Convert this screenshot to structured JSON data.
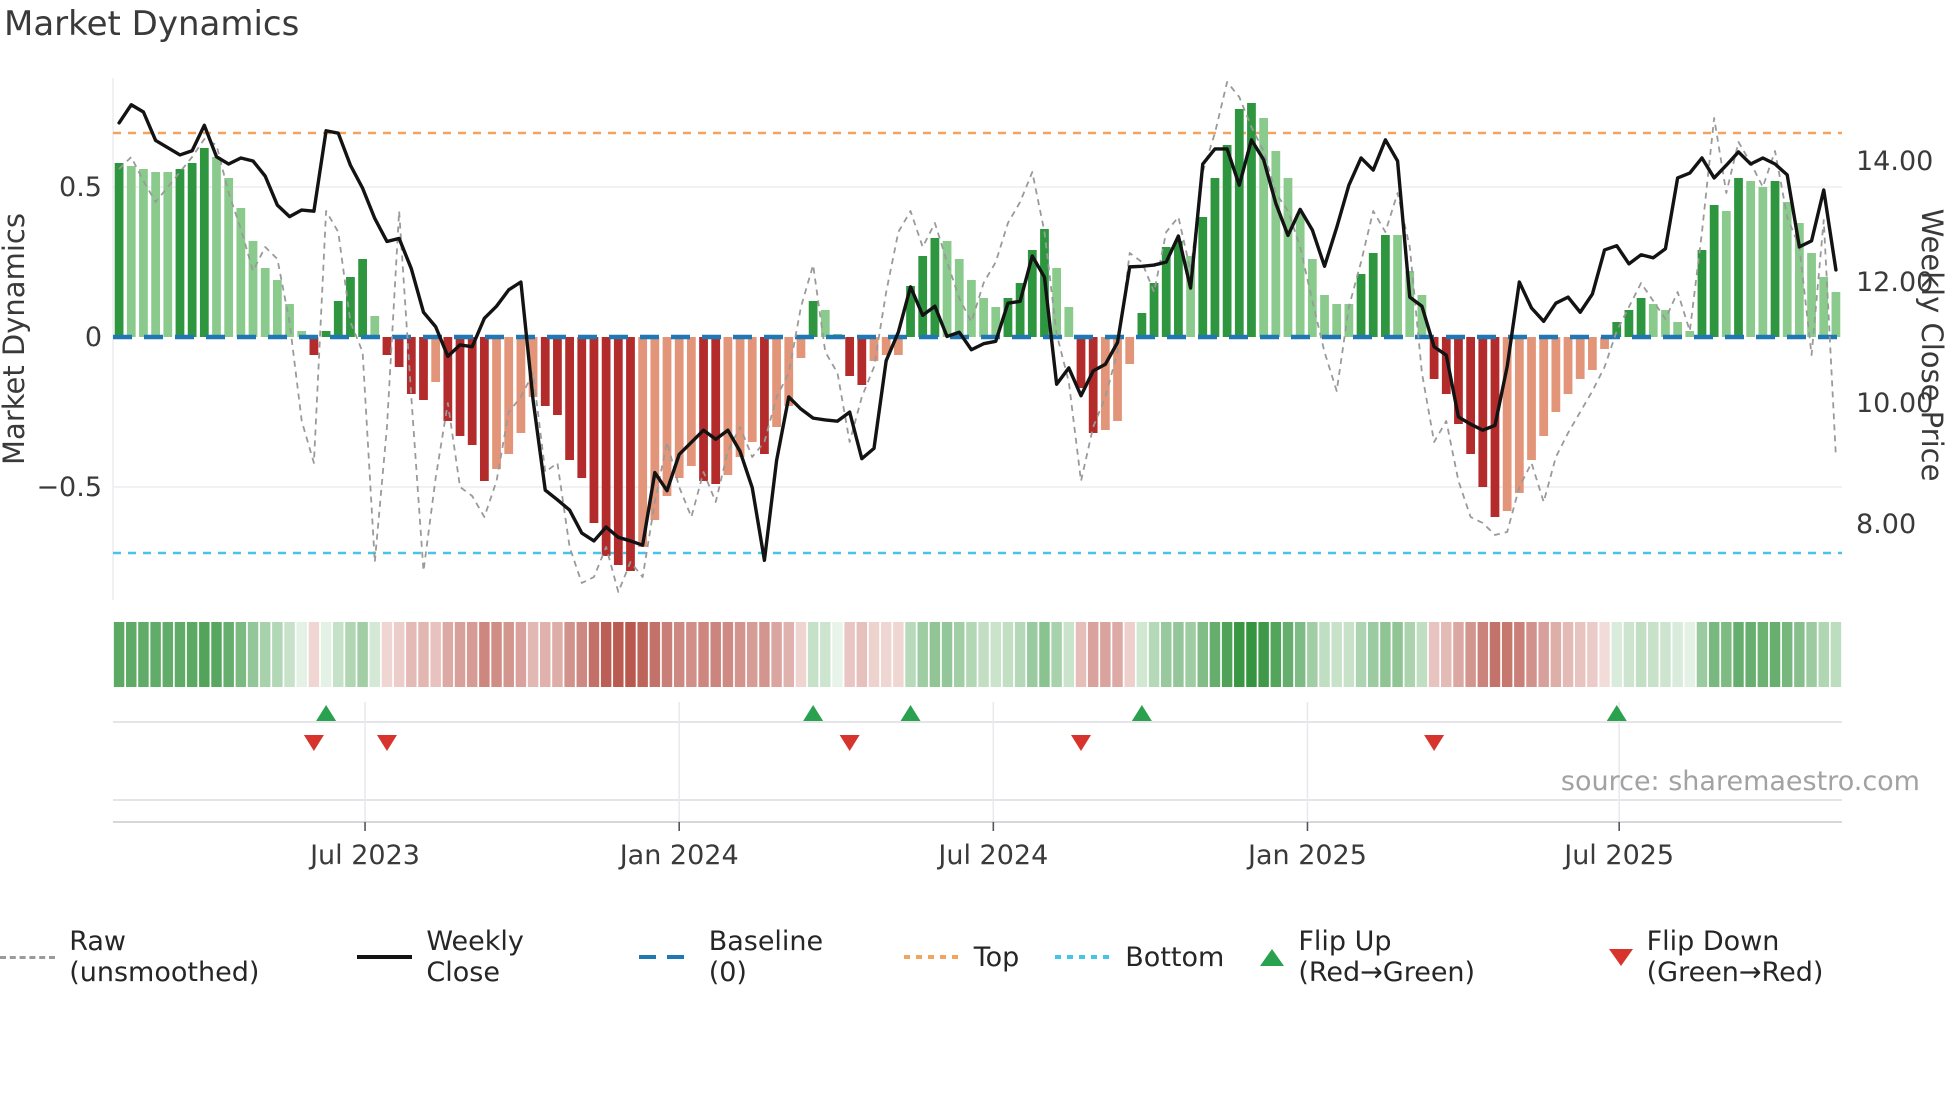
{
  "title": "Market Dynamics",
  "source": "source: sharemaestro.com",
  "axes": {
    "left_label": "Market Dynamics",
    "right_label": "Weekly Close Price",
    "left_ticks": [
      {
        "value": 0.5,
        "label": "0.5"
      },
      {
        "value": 0.0,
        "label": "0"
      },
      {
        "value": -0.5,
        "label": "−0.5"
      }
    ],
    "right_ticks": [
      {
        "value": 14,
        "label": "14.00"
      },
      {
        "value": 12,
        "label": "12.00"
      },
      {
        "value": 10,
        "label": "10.00"
      },
      {
        "value": 8,
        "label": "8.00"
      }
    ],
    "x_ticks": [
      {
        "week": 20.7,
        "label": "Jul 2023"
      },
      {
        "week": 46.5,
        "label": "Jan 2024"
      },
      {
        "week": 72.3,
        "label": "Jul 2024"
      },
      {
        "week": 98.1,
        "label": "Jan 2025"
      },
      {
        "week": 123.7,
        "label": "Jul 2025"
      }
    ]
  },
  "chart_data": {
    "type": "bar",
    "weeks": 142,
    "baseline": 0,
    "top_level": 0.68,
    "bottom_level": -0.72,
    "left_axis_range": [
      -0.87,
      0.87
    ],
    "price_axis_range": [
      7.2,
      15.1
    ],
    "series": [
      {
        "name": "Market Dynamics (smoothed bars)",
        "values": [
          0.58,
          0.57,
          0.56,
          0.55,
          0.55,
          0.56,
          0.58,
          0.63,
          0.6,
          0.53,
          0.43,
          0.32,
          0.23,
          0.19,
          0.11,
          0.02,
          -0.06,
          0.02,
          0.12,
          0.2,
          0.26,
          0.07,
          -0.06,
          -0.1,
          -0.19,
          -0.21,
          -0.15,
          -0.28,
          -0.33,
          -0.36,
          -0.48,
          -0.44,
          -0.39,
          -0.32,
          -0.2,
          -0.23,
          -0.26,
          -0.41,
          -0.47,
          -0.62,
          -0.73,
          -0.76,
          -0.78,
          -0.7,
          -0.61,
          -0.53,
          -0.47,
          -0.43,
          -0.48,
          -0.49,
          -0.46,
          -0.4,
          -0.35,
          -0.39,
          -0.3,
          -0.23,
          -0.07,
          0.12,
          0.09,
          0.01,
          -0.13,
          -0.16,
          -0.08,
          -0.06,
          -0.06,
          0.17,
          0.27,
          0.33,
          0.32,
          0.26,
          0.19,
          0.13,
          0.1,
          0.13,
          0.18,
          0.29,
          0.36,
          0.23,
          0.1,
          -0.17,
          -0.32,
          -0.31,
          -0.28,
          -0.09,
          0.08,
          0.18,
          0.3,
          0.32,
          0.27,
          0.4,
          0.53,
          0.64,
          0.76,
          0.78,
          0.73,
          0.62,
          0.53,
          0.41,
          0.26,
          0.14,
          0.11,
          0.11,
          0.21,
          0.28,
          0.34,
          0.34,
          0.22,
          0.14,
          -0.14,
          -0.19,
          -0.29,
          -0.39,
          -0.5,
          -0.6,
          -0.58,
          -0.52,
          -0.41,
          -0.33,
          -0.25,
          -0.19,
          -0.14,
          -0.11,
          -0.04,
          0.05,
          0.09,
          0.13,
          0.11,
          0.09,
          0.05,
          0.02,
          0.29,
          0.44,
          0.42,
          0.53,
          0.52,
          0.5,
          0.52,
          0.45,
          0.38,
          0.28,
          0.2,
          0.15
        ]
      },
      {
        "name": "Raw (unsmoothed)",
        "values": [
          0.56,
          0.6,
          0.52,
          0.45,
          0.5,
          0.55,
          0.6,
          0.66,
          0.64,
          0.48,
          0.36,
          0.22,
          0.3,
          0.26,
          0.05,
          -0.28,
          -0.42,
          0.42,
          0.35,
          0.05,
          -0.05,
          -0.75,
          -0.3,
          0.42,
          -0.2,
          -0.78,
          -0.47,
          -0.22,
          -0.5,
          -0.53,
          -0.6,
          -0.48,
          -0.25,
          -0.2,
          -0.12,
          -0.45,
          -0.42,
          -0.7,
          -0.82,
          -0.8,
          -0.7,
          -0.85,
          -0.75,
          -0.8,
          -0.55,
          -0.35,
          -0.5,
          -0.6,
          -0.45,
          -0.55,
          -0.38,
          -0.3,
          -0.4,
          -0.35,
          -0.2,
          -0.12,
          0.1,
          0.24,
          -0.05,
          -0.12,
          -0.35,
          -0.2,
          -0.1,
          0.15,
          0.35,
          0.42,
          0.3,
          0.38,
          0.25,
          0.13,
          0.05,
          0.18,
          0.25,
          0.38,
          0.45,
          0.55,
          0.35,
          0.01,
          -0.15,
          -0.48,
          -0.3,
          -0.2,
          -0.05,
          0.28,
          0.25,
          0.15,
          0.35,
          0.4,
          0.22,
          0.55,
          0.68,
          0.85,
          0.8,
          0.7,
          0.62,
          0.48,
          0.42,
          0.3,
          0.12,
          -0.05,
          -0.18,
          0.1,
          0.25,
          0.42,
          0.35,
          0.48,
          0.3,
          -0.12,
          -0.35,
          -0.28,
          -0.48,
          -0.6,
          -0.62,
          -0.66,
          -0.65,
          -0.5,
          -0.42,
          -0.55,
          -0.4,
          -0.32,
          -0.25,
          -0.18,
          -0.1,
          0.02,
          0.1,
          0.18,
          0.12,
          0.06,
          0.15,
          0.02,
          0.35,
          0.73,
          0.48,
          0.65,
          0.58,
          0.5,
          0.62,
          0.4,
          0.3,
          -0.06,
          0.39,
          -0.4
        ]
      },
      {
        "name": "Weekly Close",
        "axis": "price",
        "values": [
          14.63,
          14.93,
          14.81,
          14.34,
          14.22,
          14.1,
          14.17,
          14.59,
          14.07,
          13.95,
          14.05,
          14.0,
          13.75,
          13.27,
          13.08,
          13.19,
          13.17,
          14.5,
          14.46,
          13.93,
          13.55,
          13.05,
          12.67,
          12.72,
          12.22,
          11.5,
          11.26,
          10.77,
          10.96,
          10.93,
          11.4,
          11.6,
          11.87,
          12.0,
          10.05,
          8.56,
          8.4,
          8.23,
          7.85,
          7.72,
          7.95,
          7.78,
          7.72,
          7.65,
          8.85,
          8.55,
          9.15,
          9.35,
          9.55,
          9.4,
          9.55,
          9.2,
          8.6,
          7.4,
          9.05,
          10.1,
          9.9,
          9.75,
          9.72,
          9.7,
          9.85,
          9.08,
          9.25,
          10.7,
          11.17,
          11.92,
          11.45,
          11.6,
          11.1,
          11.17,
          10.88,
          10.98,
          11.02,
          11.65,
          11.68,
          12.43,
          12.08,
          10.31,
          10.58,
          10.12,
          10.53,
          10.64,
          11.0,
          12.25,
          12.26,
          12.28,
          12.33,
          12.76,
          11.9,
          13.95,
          14.2,
          14.2,
          13.6,
          14.35,
          14.02,
          13.3,
          12.77,
          13.2,
          12.86,
          12.26,
          12.9,
          13.6,
          14.05,
          13.85,
          14.35,
          14.0,
          11.75,
          11.6,
          10.93,
          10.79,
          9.77,
          9.65,
          9.55,
          9.63,
          10.6,
          12.0,
          11.57,
          11.35,
          11.65,
          11.75,
          11.5,
          11.8,
          12.53,
          12.6,
          12.3,
          12.45,
          12.4,
          12.55,
          13.72,
          13.8,
          14.05,
          13.72,
          13.93,
          14.15,
          13.95,
          14.05,
          13.95,
          13.77,
          12.58,
          12.68,
          13.52,
          12.2
        ]
      }
    ],
    "flip_up_weeks": [
      17,
      57,
      65,
      84,
      123
    ],
    "flip_down_weeks": [
      16,
      22,
      60,
      79,
      108
    ]
  },
  "legend": [
    {
      "swatch": "dash",
      "color": "#9a9a9a",
      "label": "Raw (unsmoothed)"
    },
    {
      "swatch": "line",
      "color": "#131313",
      "label": "Weekly Close"
    },
    {
      "swatch": "ldash",
      "color": "#1f77b4",
      "label": "Baseline (0)"
    },
    {
      "swatch": "dots",
      "color": "#f2a45f",
      "label": "Top"
    },
    {
      "swatch": "dots",
      "color": "#47c5e8",
      "label": "Bottom"
    },
    {
      "swatch": "tri-up",
      "color": "#2aa14e",
      "label": "Flip Up (Red→Green)"
    },
    {
      "swatch": "tri-down",
      "color": "#d8342e",
      "label": "Flip Down (Green→Red)"
    }
  ],
  "colors": {
    "bar_pos_dark": "#2f9640",
    "bar_pos_light": "#8acb8d",
    "bar_neg_dark": "#b32b2b",
    "bar_neg_light": "#e39579",
    "close_line": "#131313",
    "raw_line": "#9a9a9a",
    "baseline": "#1f77b4",
    "top_line": "#f2a45f",
    "bottom_line": "#47c5e8",
    "marker_up": "#2aa14e",
    "marker_down": "#d8342e",
    "heat_green_deep": "#35943f",
    "heat_green_pale": "#eef7ee",
    "heat_red_deep": "#b8584e",
    "heat_red_pale": "#f8e9e7",
    "grid": "#ececf2",
    "spine": "#c9c9cf",
    "tick_text": "#3a3a3a"
  }
}
